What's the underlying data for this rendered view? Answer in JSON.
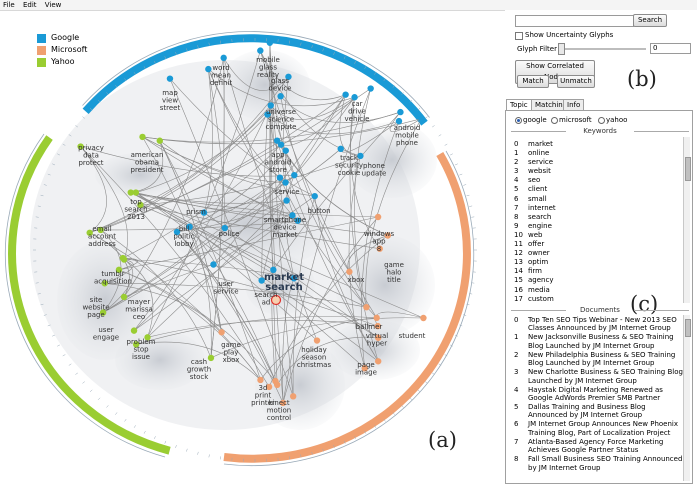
{
  "menu": [
    "File",
    "Edit",
    "View"
  ],
  "legend": [
    {
      "name": "Google",
      "color": "#1a9ad6"
    },
    {
      "name": "Microsoft",
      "color": "#f0a070"
    },
    {
      "name": "Yahoo",
      "color": "#9acd32"
    }
  ],
  "vis_label": "(a)",
  "panel_b_label": "(b)",
  "panel_c_label": "(c)",
  "controls": {
    "search_button": "Search",
    "search_value": "",
    "uncertainty_label": "Show Uncertainty Glyphs",
    "glyph_filter_label": "Glyph Filter",
    "glyph_filter_value": "0",
    "correlated_button": "Show Correlated Nodes",
    "match_button": "Match",
    "unmatch_button": "Unmatch"
  },
  "tabs": [
    "Topic",
    "Matching",
    "Info"
  ],
  "radios": [
    "google",
    "microsoft",
    "yahoo"
  ],
  "keywords_title": "Keywords",
  "keywords": [
    "market",
    "online",
    "service",
    "websit",
    "seo",
    "client",
    "small",
    "internet",
    "search",
    "engine",
    "web",
    "offer",
    "owner",
    "optim",
    "firm",
    "agency",
    "media",
    "custom"
  ],
  "documents_title": "Documents",
  "documents": [
    "Top Ten SEO Tips Webinar - New 2013 SEO Classes Announced by JM Internet Group",
    "New Jacksonville Business & SEO Training Blog Launched by JM Internet Group",
    "New Philadelphia Business & SEO Training Blog Launched by JM Internet Group",
    "New Charlotte Business & SEO Training Blog Launched by JM Internet Group",
    "Haystak Digital Marketing Renewed as Google AdWords Premier SMB Partner",
    "Dallas Training and Business Blog Announced by JM Internet Group",
    "JM Internet Group Announces New Phoenix Training Blog, Part of Localization Project",
    "Atlanta-Based Agency Force Marketing Achieves Google Partner Status",
    "Fall Small Business SEO Training Announced by JM Internet Group"
  ],
  "topics": [
    {
      "label": "mobile\nglass\nreality",
      "cls": "g"
    },
    {
      "label": "word\nmean\ndefinit",
      "cls": "g"
    },
    {
      "label": "glass\ndevice",
      "cls": "g"
    },
    {
      "label": "map\nview\nstreet",
      "cls": "g"
    },
    {
      "label": "universe\nscience\ncompute",
      "cls": "g"
    },
    {
      "label": "car\ndrive\nvehicle",
      "cls": "g"
    },
    {
      "label": "android\nmobile\nphone",
      "cls": "g"
    },
    {
      "label": "privacy\ndata\nprotect",
      "cls": "y"
    },
    {
      "label": "american\nobama\npresident",
      "cls": "y"
    },
    {
      "label": "app\nandroid\nstore",
      "cls": "g"
    },
    {
      "label": "track\nsecurity\ncookie",
      "cls": "g"
    },
    {
      "label": "phone\nupdate",
      "cls": "g"
    },
    {
      "label": "top\nsearch\n2013",
      "cls": "y"
    },
    {
      "label": "service",
      "cls": "g"
    },
    {
      "label": "prism",
      "cls": "g"
    },
    {
      "label": "smartphone\ndevice\nmarket",
      "cls": "g"
    },
    {
      "label": "button",
      "cls": "g"
    },
    {
      "label": "bill\npolitic\nlobby",
      "cls": "g"
    },
    {
      "label": "police",
      "cls": "g"
    },
    {
      "label": "email\naccount\naddress",
      "cls": "y"
    },
    {
      "label": "windows\napp\n8",
      "cls": "m"
    },
    {
      "label": "game\nhalo\ntitle",
      "cls": "m"
    },
    {
      "label": "tumblr\nacquisition",
      "cls": "y"
    },
    {
      "label": "user\nservice",
      "cls": "g"
    },
    {
      "label": "market\nsearch",
      "cls": "bold"
    },
    {
      "label": "xbox",
      "cls": "m"
    },
    {
      "label": "search\nad",
      "cls": "g"
    },
    {
      "label": "site\nwebsite\npage",
      "cls": "y"
    },
    {
      "label": "mayer\nmarissa\nceo",
      "cls": "y"
    },
    {
      "label": "user\nengage",
      "cls": "y"
    },
    {
      "label": "ballmer",
      "cls": "m"
    },
    {
      "label": "problem\nstop\nissue",
      "cls": "y"
    },
    {
      "label": "student",
      "cls": "m"
    },
    {
      "label": "game\nplay\nxbox",
      "cls": "m"
    },
    {
      "label": "holiday\nseason\nchristmas",
      "cls": "m"
    },
    {
      "label": "virtual\nhyper",
      "cls": "m"
    },
    {
      "label": "cash\ngrowth\nstock",
      "cls": "y"
    },
    {
      "label": "page\nimage",
      "cls": "m"
    },
    {
      "label": "3d\nprint\nprinter",
      "cls": "m"
    },
    {
      "label": "kinect\nmotion\ncontrol",
      "cls": "m"
    }
  ]
}
